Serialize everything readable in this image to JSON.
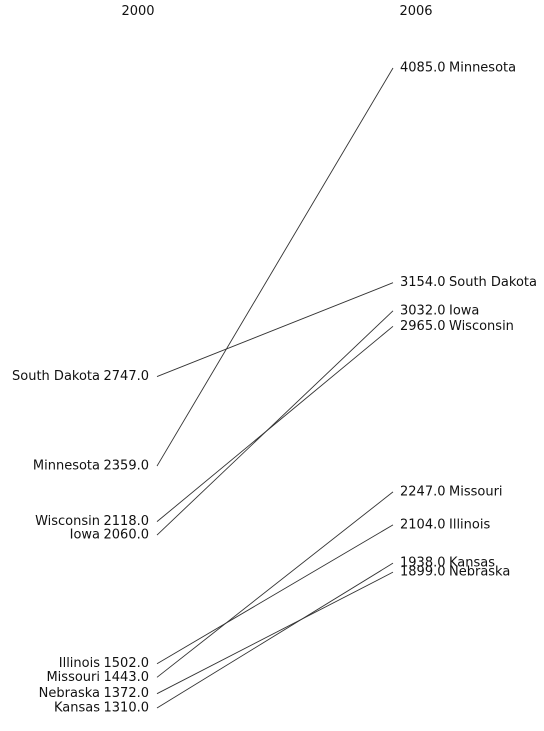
{
  "chart_data": {
    "type": "slope",
    "x": [
      "2000",
      "2006"
    ],
    "series": [
      {
        "name": "Minnesota",
        "values": [
          2359.0,
          4085.0
        ]
      },
      {
        "name": "South Dakota",
        "values": [
          2747.0,
          3154.0
        ]
      },
      {
        "name": "Iowa",
        "values": [
          2060.0,
          3032.0
        ]
      },
      {
        "name": "Wisconsin",
        "values": [
          2118.0,
          2965.0
        ]
      },
      {
        "name": "Missouri",
        "values": [
          1443.0,
          2247.0
        ]
      },
      {
        "name": "Illinois",
        "values": [
          1502.0,
          2104.0
        ]
      },
      {
        "name": "Kansas",
        "values": [
          1310.0,
          1938.0
        ]
      },
      {
        "name": "Nebraska",
        "values": [
          1372.0,
          1899.0
        ]
      }
    ],
    "value_format": "one-decimal",
    "ylim": [
      1310.0,
      4085.0
    ],
    "grid": false,
    "legend": "none",
    "line_color": "#333333",
    "text_color": "#111111"
  }
}
